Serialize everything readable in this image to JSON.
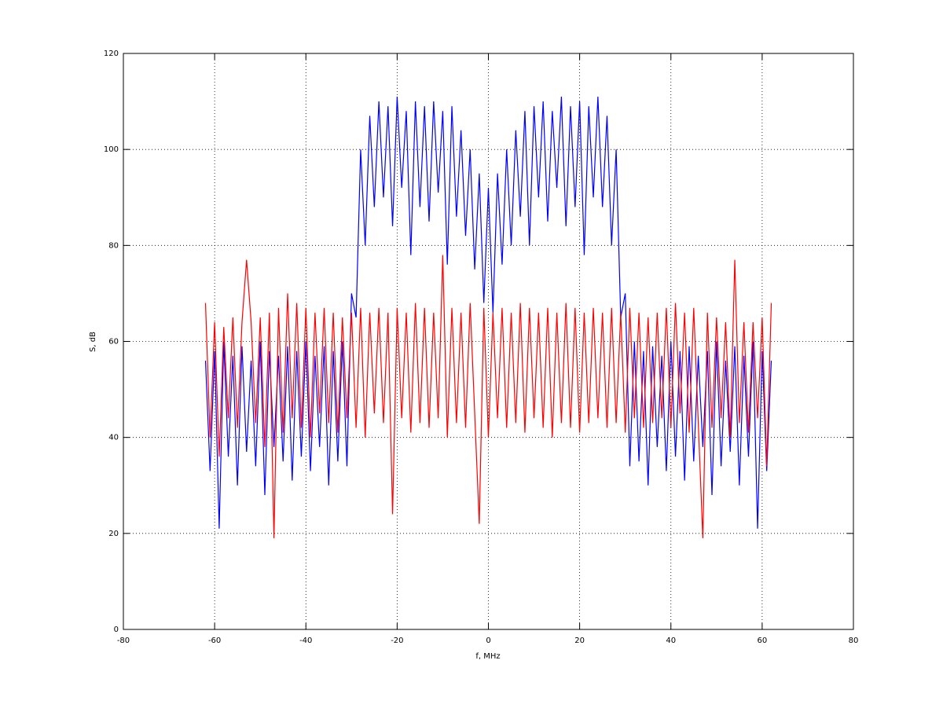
{
  "chart_data": {
    "type": "line",
    "xlabel": "f, MHz",
    "ylabel": "S, dB",
    "x": [
      -62,
      -61,
      -60,
      -59,
      -58,
      -57,
      -56,
      -55,
      -54,
      -53,
      -52,
      -51,
      -50,
      -49,
      -48,
      -47,
      -46,
      -45,
      -44,
      -43,
      -42,
      -41,
      -40,
      -39,
      -38,
      -37,
      -36,
      -35,
      -34,
      -33,
      -32,
      -31,
      -30,
      -29,
      -28,
      -27,
      -26,
      -25,
      -24,
      -23,
      -22,
      -21,
      -20,
      -19,
      -18,
      -17,
      -16,
      -15,
      -14,
      -13,
      -12,
      -11,
      -10,
      -9,
      -8,
      -7,
      -6,
      -5,
      -4,
      -3,
      -2,
      -1,
      0,
      1,
      2,
      3,
      4,
      5,
      6,
      7,
      8,
      9,
      10,
      11,
      12,
      13,
      14,
      15,
      16,
      17,
      18,
      19,
      20,
      21,
      22,
      23,
      24,
      25,
      26,
      27,
      28,
      29,
      30,
      31,
      32,
      33,
      34,
      35,
      36,
      37,
      38,
      39,
      40,
      41,
      42,
      43,
      44,
      45,
      46,
      47,
      48,
      49,
      50,
      51,
      52,
      53,
      54,
      55,
      56,
      57,
      58,
      59,
      60,
      61,
      62
    ],
    "series": [
      {
        "color": "#0000ff",
        "values": [
          56,
          33,
          58,
          21,
          60,
          36,
          57,
          30,
          59,
          37,
          56,
          34,
          60,
          28,
          58,
          38,
          57,
          35,
          59,
          31,
          58,
          36,
          60,
          33,
          57,
          38,
          59,
          30,
          58,
          35,
          60,
          34,
          70,
          65,
          100,
          80,
          107,
          88,
          110,
          90,
          109,
          84,
          111,
          92,
          108,
          78,
          110,
          88,
          109,
          85,
          110,
          91,
          108,
          76,
          109,
          86,
          104,
          82,
          100,
          75,
          95,
          68,
          92,
          66,
          95,
          76,
          100,
          80,
          104,
          86,
          108,
          80,
          109,
          90,
          110,
          85,
          108,
          92,
          111,
          84,
          109,
          88,
          110,
          78,
          109,
          90,
          111,
          88,
          107,
          80,
          100,
          65,
          70,
          34,
          60,
          35,
          58,
          30,
          59,
          38,
          57,
          33,
          60,
          36,
          58,
          31,
          59,
          35,
          57,
          38,
          58,
          28,
          60,
          34,
          56,
          37,
          59,
          30,
          57,
          36,
          60,
          21,
          58,
          33,
          56
        ]
      },
      {
        "color": "#ff0000",
        "values": [
          68,
          40,
          64,
          36,
          63,
          44,
          65,
          42,
          64,
          77,
          64,
          43,
          65,
          38,
          66,
          19,
          67,
          41,
          70,
          44,
          68,
          42,
          67,
          40,
          66,
          45,
          67,
          43,
          66,
          41,
          65,
          44,
          66,
          42,
          67,
          40,
          66,
          45,
          67,
          43,
          66,
          24,
          67,
          44,
          66,
          41,
          68,
          43,
          67,
          42,
          66,
          44,
          78,
          40,
          67,
          43,
          66,
          42,
          68,
          45,
          22,
          67,
          40,
          66,
          44,
          67,
          42,
          66,
          43,
          68,
          41,
          67,
          44,
          66,
          42,
          67,
          40,
          66,
          43,
          68,
          42,
          67,
          41,
          66,
          43,
          67,
          44,
          66,
          42,
          67,
          43,
          66,
          41,
          67,
          44,
          66,
          42,
          65,
          43,
          66,
          44,
          67,
          42,
          68,
          45,
          66,
          41,
          67,
          43,
          19,
          66,
          42,
          65,
          44,
          64,
          40,
          77,
          43,
          64,
          41,
          64,
          44,
          65,
          34,
          68
        ]
      }
    ],
    "xlim": [
      -80,
      80
    ],
    "xticks": [
      -80,
      -60,
      -40,
      -20,
      0,
      20,
      40,
      60,
      80
    ],
    "ylim": [
      0,
      120
    ],
    "yticks": [
      0,
      20,
      40,
      60,
      80,
      100,
      120
    ],
    "grid": true
  }
}
